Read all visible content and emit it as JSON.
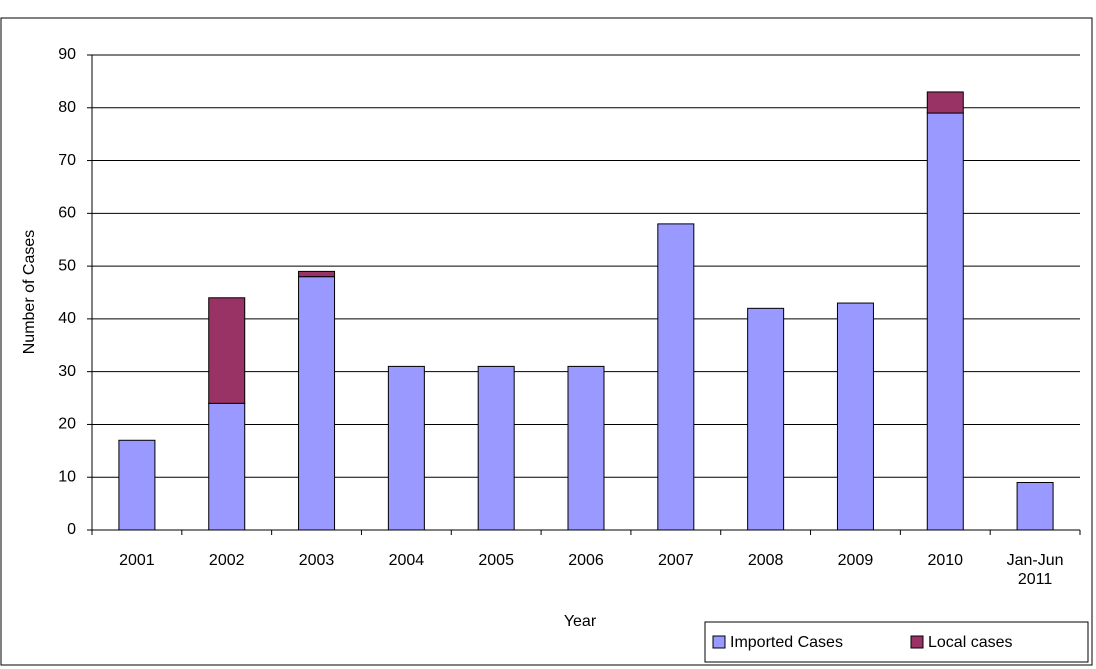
{
  "chart_data": {
    "type": "stacked_bar",
    "x_label": "Year",
    "y_label": "Number of Cases",
    "categories": [
      "2001",
      "2002",
      "2003",
      "2004",
      "2005",
      "2006",
      "2007",
      "2008",
      "2009",
      "2010",
      "Jan-Jun 2011"
    ],
    "series": [
      {
        "name": "Imported Cases",
        "color": "#9999ff",
        "values": [
          17,
          24,
          48,
          31,
          31,
          31,
          58,
          42,
          43,
          79,
          9
        ]
      },
      {
        "name": "Local cases",
        "color": "#993366",
        "values": [
          0,
          20,
          1,
          0,
          0,
          0,
          0,
          0,
          0,
          4,
          0
        ]
      }
    ],
    "ylim": [
      0,
      90
    ],
    "yticks": [
      0,
      10,
      20,
      30,
      40,
      50,
      60,
      70,
      80,
      90
    ],
    "grid": true
  }
}
